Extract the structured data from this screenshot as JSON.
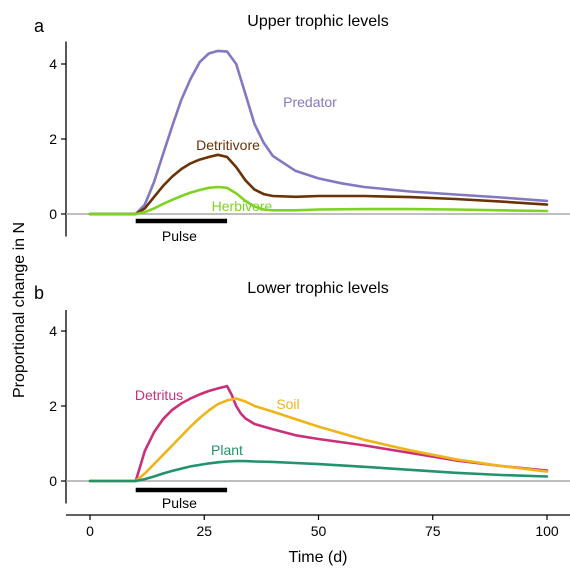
{
  "figure": {
    "ylabel": "Proportional change in N",
    "xlabel": "Time (d)",
    "x_ticks": [
      "0",
      "25",
      "50",
      "75",
      "100"
    ]
  },
  "chart_data": [
    {
      "type": "line",
      "panel_letter": "a",
      "title": "Upper trophic levels",
      "xlim": [
        0,
        100
      ],
      "ylim": [
        -0.6,
        4.6
      ],
      "y_ticks": [
        0,
        2,
        4
      ],
      "pulse": {
        "label": "Pulse",
        "x_start": 10,
        "x_end": 30
      },
      "reference_line_y": 0,
      "series": [
        {
          "name": "Predator",
          "color": "#8378c4",
          "x": [
            0,
            10,
            12,
            14,
            16,
            18,
            20,
            22,
            24,
            26,
            28,
            30,
            32,
            34,
            36,
            38,
            40,
            45,
            50,
            55,
            60,
            70,
            80,
            90,
            100
          ],
          "y": [
            0,
            0,
            0.25,
            0.85,
            1.6,
            2.35,
            3.05,
            3.6,
            4.05,
            4.28,
            4.35,
            4.33,
            4.0,
            3.2,
            2.4,
            1.9,
            1.55,
            1.15,
            0.95,
            0.82,
            0.72,
            0.6,
            0.52,
            0.44,
            0.35
          ]
        },
        {
          "name": "Detritivore",
          "color": "#6b3206",
          "x": [
            0,
            10,
            12,
            14,
            16,
            18,
            20,
            22,
            24,
            26,
            28,
            30,
            32,
            34,
            36,
            38,
            40,
            45,
            50,
            60,
            70,
            80,
            90,
            100
          ],
          "y": [
            0,
            0,
            0.15,
            0.45,
            0.75,
            1.0,
            1.2,
            1.35,
            1.45,
            1.52,
            1.58,
            1.52,
            1.25,
            0.9,
            0.65,
            0.53,
            0.48,
            0.46,
            0.48,
            0.48,
            0.45,
            0.4,
            0.33,
            0.25
          ]
        },
        {
          "name": "Herbivore",
          "color": "#7ed321",
          "x": [
            0,
            10,
            12,
            14,
            16,
            18,
            20,
            22,
            24,
            26,
            28,
            30,
            32,
            34,
            36,
            38,
            40,
            45,
            50,
            60,
            70,
            80,
            90,
            100
          ],
          "y": [
            0,
            0,
            0.05,
            0.15,
            0.27,
            0.38,
            0.48,
            0.57,
            0.64,
            0.7,
            0.72,
            0.7,
            0.55,
            0.35,
            0.2,
            0.12,
            0.1,
            0.1,
            0.12,
            0.13,
            0.13,
            0.12,
            0.1,
            0.08
          ]
        }
      ]
    },
    {
      "type": "line",
      "panel_letter": "b",
      "title": "Lower trophic levels",
      "xlim": [
        0,
        100
      ],
      "ylim": [
        -0.6,
        4.6
      ],
      "y_ticks": [
        0,
        2,
        4
      ],
      "pulse": {
        "label": "Pulse",
        "x_start": 10,
        "x_end": 30
      },
      "reference_line_y": 0,
      "series": [
        {
          "name": "Detritus",
          "color": "#cc2f7a",
          "x": [
            0,
            10,
            11,
            12,
            14,
            16,
            18,
            20,
            22,
            24,
            26,
            28,
            30,
            31,
            32,
            33,
            34,
            36,
            40,
            45,
            50,
            60,
            70,
            80,
            90,
            100
          ],
          "y": [
            0,
            0,
            0.4,
            0.8,
            1.3,
            1.65,
            1.9,
            2.07,
            2.2,
            2.31,
            2.4,
            2.47,
            2.53,
            2.3,
            2.0,
            1.8,
            1.67,
            1.52,
            1.38,
            1.22,
            1.12,
            0.95,
            0.75,
            0.55,
            0.4,
            0.28
          ]
        },
        {
          "name": "Soil",
          "color": "#f0b419",
          "x": [
            0,
            10,
            12,
            14,
            16,
            18,
            20,
            22,
            24,
            26,
            28,
            30,
            32,
            34,
            36,
            40,
            45,
            50,
            60,
            70,
            80,
            90,
            100
          ],
          "y": [
            0,
            0,
            0.2,
            0.45,
            0.7,
            0.95,
            1.2,
            1.45,
            1.68,
            1.88,
            2.05,
            2.15,
            2.2,
            2.12,
            2.0,
            1.85,
            1.65,
            1.45,
            1.1,
            0.82,
            0.58,
            0.4,
            0.25
          ]
        },
        {
          "name": "Plant",
          "color": "#22936a",
          "x": [
            0,
            10,
            12,
            14,
            16,
            18,
            20,
            22,
            24,
            26,
            28,
            30,
            32,
            34,
            36,
            40,
            45,
            50,
            60,
            70,
            80,
            90,
            100
          ],
          "y": [
            0,
            0,
            0.05,
            0.12,
            0.2,
            0.27,
            0.33,
            0.39,
            0.43,
            0.47,
            0.5,
            0.52,
            0.53,
            0.53,
            0.52,
            0.51,
            0.48,
            0.45,
            0.38,
            0.3,
            0.22,
            0.16,
            0.12
          ]
        }
      ]
    }
  ]
}
